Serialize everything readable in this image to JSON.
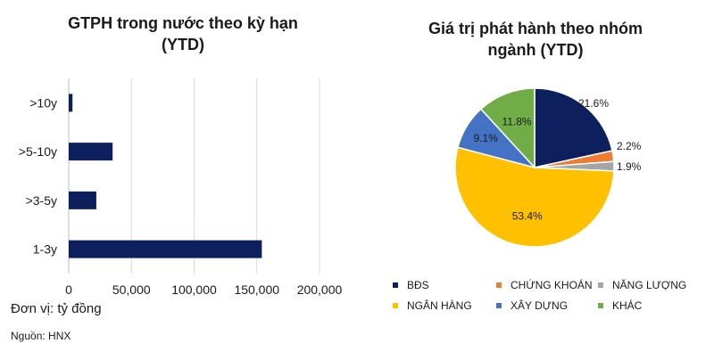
{
  "chart_data": [
    {
      "type": "bar",
      "orientation": "horizontal",
      "title": "GTPH trong nước theo kỳ hạn (YTD)",
      "title_lines": [
        "GTPH trong nước theo kỳ hạn",
        "(YTD)"
      ],
      "categories": [
        ">10y",
        ">5-10y",
        ">3-5y",
        "1-3y"
      ],
      "values": [
        3000,
        35000,
        22000,
        154000
      ],
      "xlim": [
        0,
        200000
      ],
      "xticks": [
        0,
        50000,
        100000,
        150000,
        200000
      ],
      "xtick_labels": [
        "0",
        "50,000",
        "100,000",
        "150,000",
        "200,000"
      ],
      "grid": true,
      "colors": {
        "bar": "#0d1f5c",
        "grid": "#d9d9d9"
      }
    },
    {
      "type": "pie",
      "title": "Giá trị phát hành theo nhóm ngành (YTD)",
      "title_lines": [
        "Giá trị phát hành theo nhóm",
        "ngành (YTD)"
      ],
      "labels": [
        "BĐS",
        "CHỨNG KHOÁN",
        "NĂNG LƯỢNG",
        "NGÂN HÀNG",
        "XÂY DỰNG",
        "KHÁC"
      ],
      "values": [
        21.6,
        2.2,
        1.9,
        53.4,
        9.1,
        11.8
      ],
      "value_labels": [
        "21.6%",
        "2.2%",
        "1.9%",
        "53.4%",
        "9.1%",
        "11.8%"
      ],
      "colors": [
        "#0d1f5c",
        "#ed7d31",
        "#a5a5a5",
        "#ffc000",
        "#4472c4",
        "#70ad47"
      ],
      "legend": "bottom"
    }
  ],
  "notes": {
    "unit": "Đơn vị: tỷ đồng",
    "source": "Nguồn: HNX"
  }
}
